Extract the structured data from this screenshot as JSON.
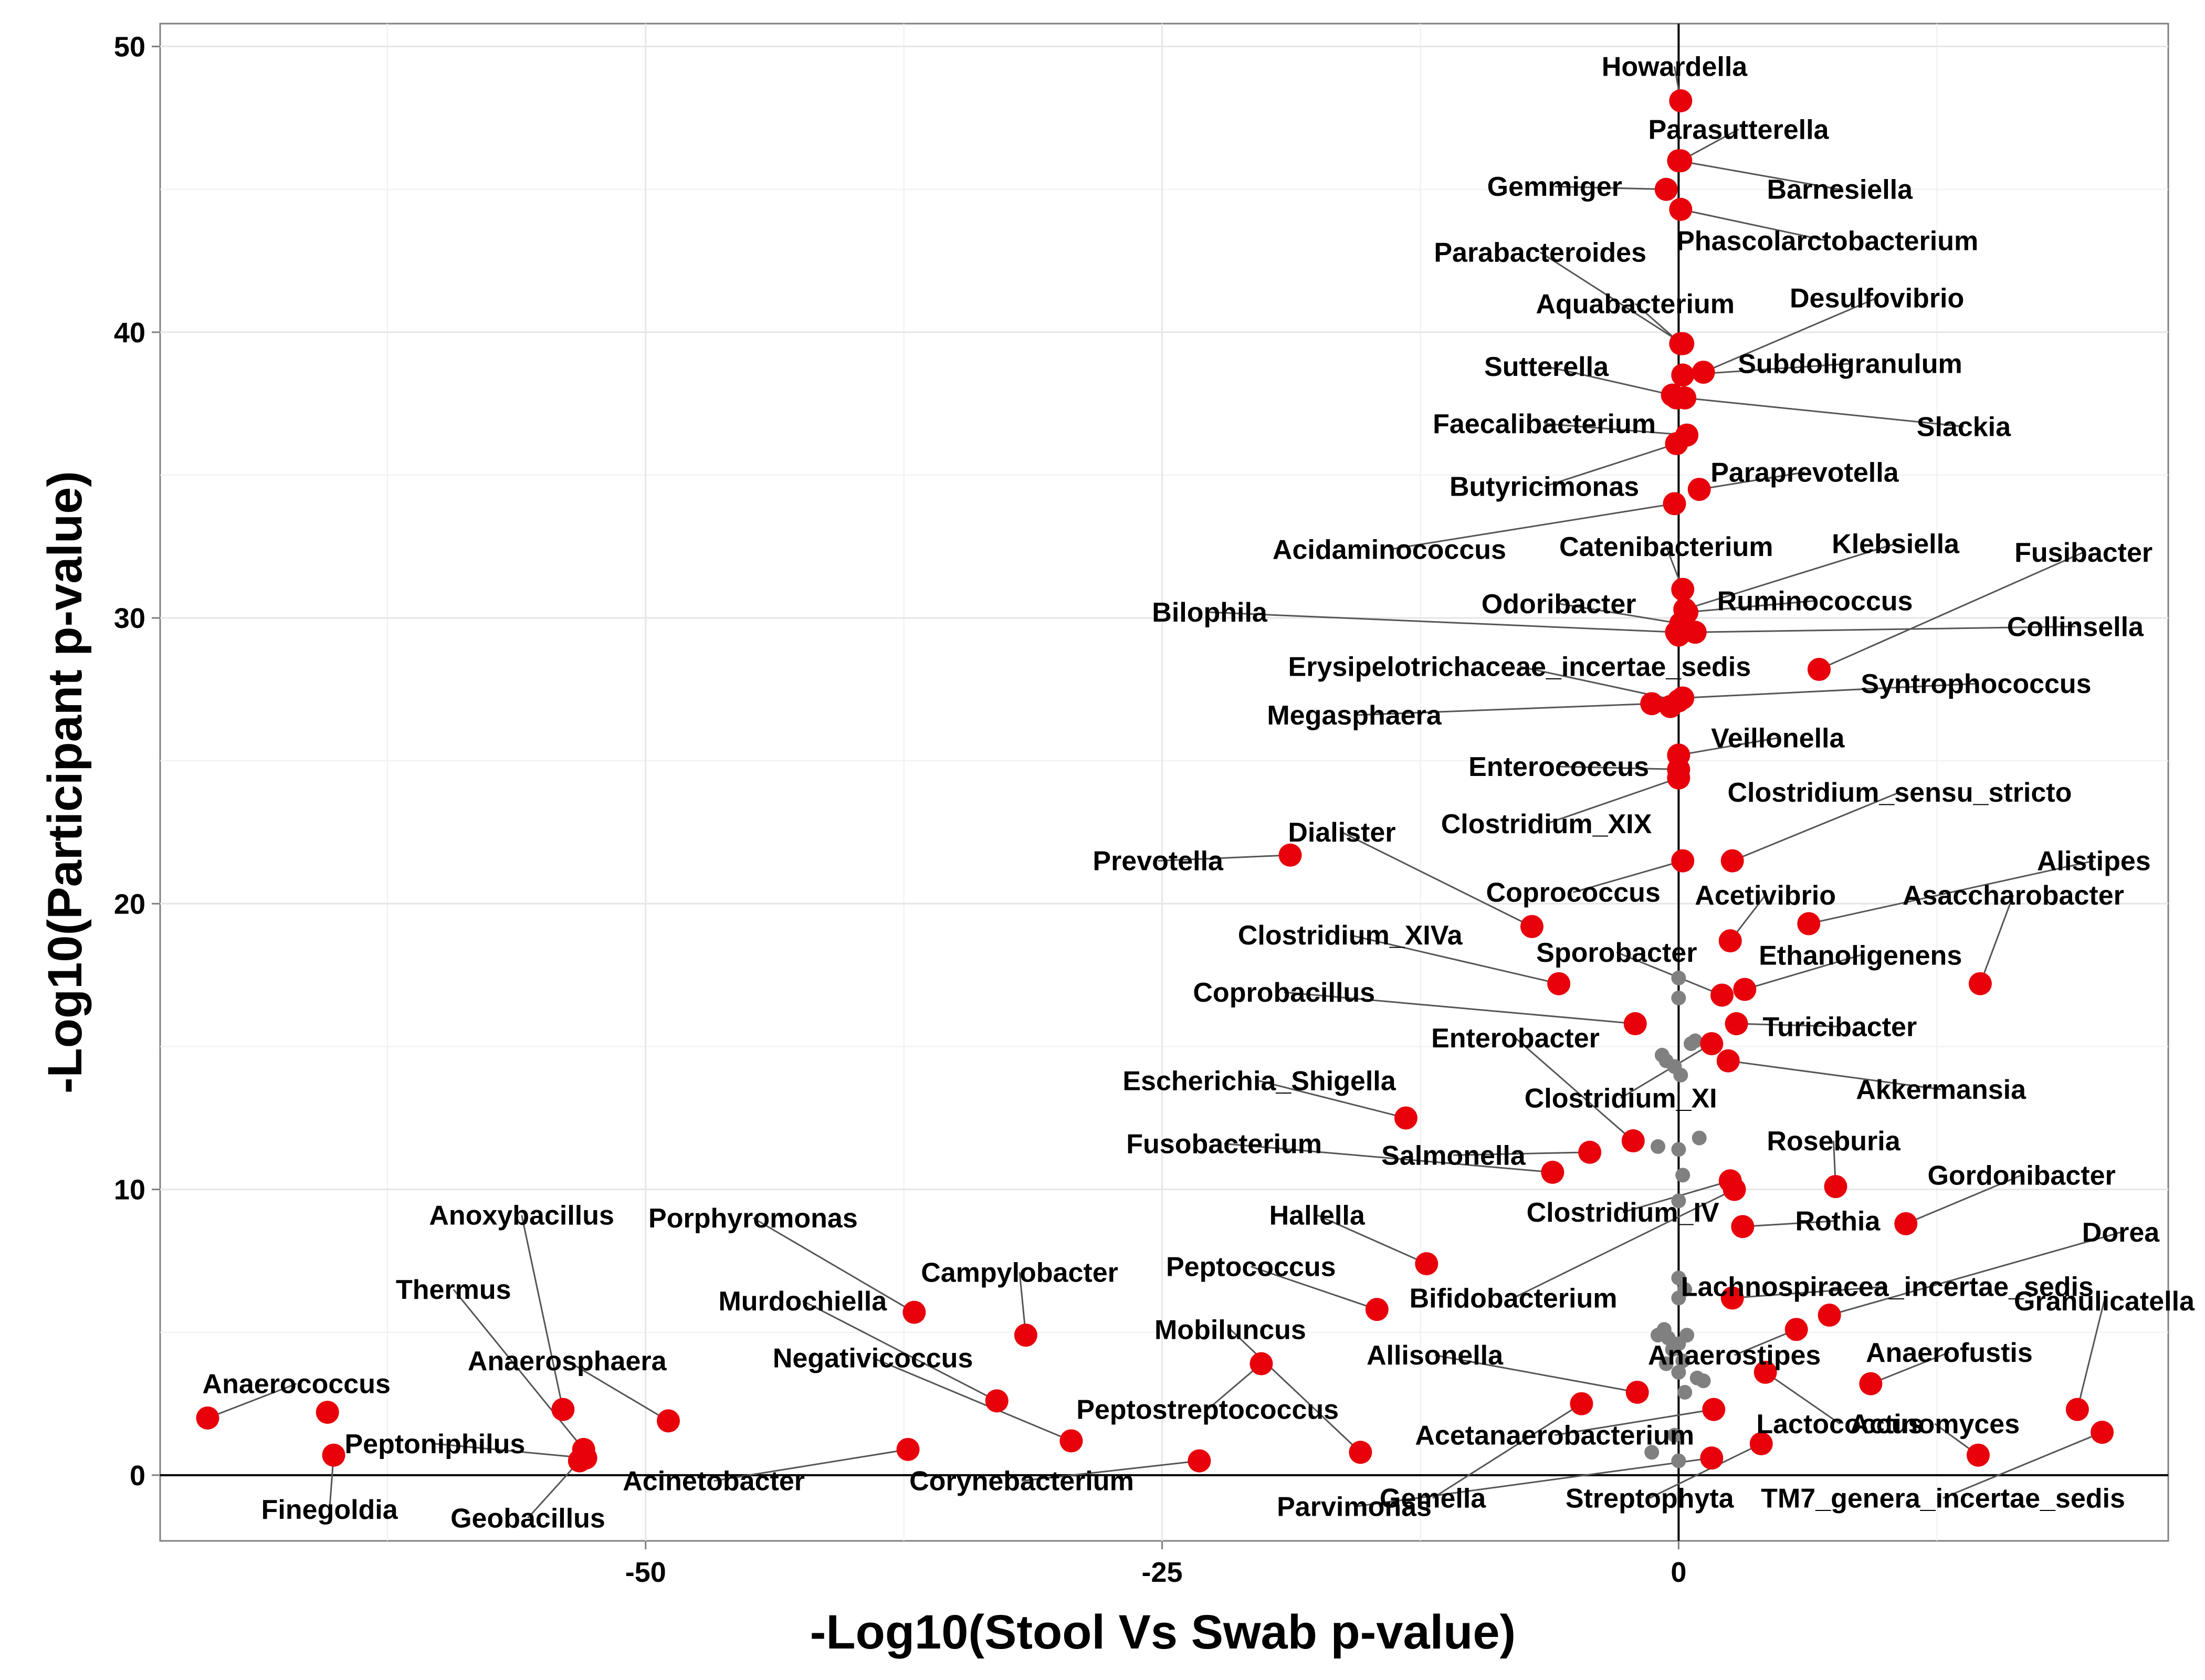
{
  "chart_data": {
    "type": "scatter",
    "title": "",
    "xlabel": "-Log10(Stool Vs Swab p-value)",
    "ylabel": "-Log10(Participant p-value)",
    "xlim": [
      -73.5,
      23.7
    ],
    "ylim": [
      -2.3,
      50.8
    ],
    "x_ticks": [
      -50,
      -25,
      0
    ],
    "x_tick_labels": [
      "-50",
      "-25",
      "0"
    ],
    "y_ticks": [
      0,
      10,
      20,
      30,
      40,
      50
    ],
    "y_tick_labels": [
      "0",
      "10",
      "20",
      "30",
      "40",
      "50"
    ],
    "grid": true,
    "reference_lines": {
      "x": 0,
      "y": 0
    },
    "highlight_color": "#e8000b",
    "background_point_color": "#808080",
    "background_points": [
      {
        "x": 0.0,
        "y": 17.4
      },
      {
        "x": 0.0,
        "y": 16.7
      },
      {
        "x": 0.8,
        "y": 15.2
      },
      {
        "x": 0.6,
        "y": 15.1
      },
      {
        "x": -0.8,
        "y": 14.7
      },
      {
        "x": -0.6,
        "y": 14.5
      },
      {
        "x": -0.2,
        "y": 14.3
      },
      {
        "x": 0.1,
        "y": 14.0
      },
      {
        "x": -1.0,
        "y": 11.5
      },
      {
        "x": 0.0,
        "y": 11.4
      },
      {
        "x": 1.0,
        "y": 11.8
      },
      {
        "x": 0.2,
        "y": 10.5
      },
      {
        "x": 0.0,
        "y": 9.6
      },
      {
        "x": 0.0,
        "y": 6.9
      },
      {
        "x": 0.3,
        "y": 6.5
      },
      {
        "x": 0.0,
        "y": 6.2
      },
      {
        "x": -0.7,
        "y": 5.1
      },
      {
        "x": -1.0,
        "y": 4.9
      },
      {
        "x": -0.5,
        "y": 4.8
      },
      {
        "x": 0.0,
        "y": 4.6
      },
      {
        "x": 0.4,
        "y": 4.9
      },
      {
        "x": -0.3,
        "y": 4.4
      },
      {
        "x": 0.2,
        "y": 4.0
      },
      {
        "x": -0.6,
        "y": 3.9
      },
      {
        "x": 0.0,
        "y": 3.6
      },
      {
        "x": 0.9,
        "y": 3.4
      },
      {
        "x": 1.2,
        "y": 3.3
      },
      {
        "x": 0.3,
        "y": 2.9
      },
      {
        "x": -0.2,
        "y": 1.4
      },
      {
        "x": -1.3,
        "y": 0.8
      },
      {
        "x": 0.0,
        "y": 0.5
      }
    ],
    "points": [
      {
        "name": "Howardella",
        "x": 0.1,
        "y": 48.1,
        "lx": -0.2,
        "ly": 49.3
      },
      {
        "name": "Parasutterella",
        "x": 0.1,
        "y": 46.0,
        "lx": 2.9,
        "ly": 47.1
      },
      {
        "name": "Barnesiella",
        "x": 0.0,
        "y": 46.0,
        "lx": 7.8,
        "ly": 45.0
      },
      {
        "name": "Gemmiger",
        "x": -0.6,
        "y": 45.0,
        "lx": -6.0,
        "ly": 45.1
      },
      {
        "name": "Phascolarctobacterium",
        "x": 0.1,
        "y": 44.3,
        "lx": 7.2,
        "ly": 43.2
      },
      {
        "name": "Parabacteroides",
        "x": 0.2,
        "y": 39.6,
        "lx": -6.7,
        "ly": 42.8
      },
      {
        "name": "Desulfovibrio",
        "x": 1.2,
        "y": 38.6,
        "lx": 9.6,
        "ly": 41.2
      },
      {
        "name": "Aquabacterium",
        "x": 0.1,
        "y": 39.6,
        "lx": -2.1,
        "ly": 41.0
      },
      {
        "name": "Subdoligranulum",
        "x": 0.2,
        "y": 38.5,
        "lx": 8.3,
        "ly": 38.9
      },
      {
        "name": "Sutterella",
        "x": -0.3,
        "y": 37.8,
        "lx": -6.4,
        "ly": 38.8
      },
      {
        "name": "Slackia",
        "x": 0.3,
        "y": 37.7,
        "lx": 13.8,
        "ly": 36.7
      },
      {
        "name": "Faecalibacterium",
        "x": 0.4,
        "y": 36.4,
        "lx": -6.5,
        "ly": 36.8
      },
      {
        "name": "Butyricimonas",
        "x": -0.1,
        "y": 36.1,
        "lx": -6.5,
        "ly": 34.6
      },
      {
        "name": "Paraprevotella",
        "x": 1.0,
        "y": 34.5,
        "lx": 6.1,
        "ly": 35.1
      },
      {
        "name": "Acidaminococcus",
        "x": -0.2,
        "y": 34.0,
        "lx": -14.0,
        "ly": 32.4
      },
      {
        "name": "Catenibacterium",
        "x": 0.2,
        "y": 31.0,
        "lx": -0.6,
        "ly": 32.5
      },
      {
        "name": "Klebsiella",
        "x": 0.3,
        "y": 30.3,
        "lx": 10.5,
        "ly": 32.6
      },
      {
        "name": "Fusibacter",
        "x": 6.8,
        "y": 28.2,
        "lx": 19.6,
        "ly": 32.3
      },
      {
        "name": "Odoribacter",
        "x": 0.1,
        "y": 29.8,
        "lx": -5.8,
        "ly": 30.5
      },
      {
        "name": "Ruminococcus",
        "x": 0.4,
        "y": 30.2,
        "lx": 6.6,
        "ly": 30.6
      },
      {
        "name": "Bilophila",
        "x": -0.1,
        "y": 29.5,
        "lx": -22.7,
        "ly": 30.2
      },
      {
        "name": "Collinsella",
        "x": 0.8,
        "y": 29.5,
        "lx": 19.2,
        "ly": 29.7
      },
      {
        "name": "Erysipelotrichaceae_incertae_sedis",
        "x": 0.0,
        "y": 27.1,
        "lx": -7.7,
        "ly": 28.3
      },
      {
        "name": "Syntrophococcus",
        "x": 0.2,
        "y": 27.2,
        "lx": 14.4,
        "ly": 27.7
      },
      {
        "name": "Megasphaera",
        "x": -1.3,
        "y": 27.0,
        "lx": -15.7,
        "ly": 26.6
      },
      {
        "name": "Veillonella",
        "x": 0.0,
        "y": 25.2,
        "lx": 4.8,
        "ly": 25.8
      },
      {
        "name": "Enterococcus",
        "x": 0.0,
        "y": 24.7,
        "lx": -5.8,
        "ly": 24.8
      },
      {
        "name": "Clostridium_sensu_stricto",
        "x": 2.6,
        "y": 21.5,
        "lx": 10.7,
        "ly": 23.9
      },
      {
        "name": "Clostridium_XIX",
        "x": 0.0,
        "y": 24.4,
        "lx": -6.4,
        "ly": 22.8
      },
      {
        "name": "Dialister",
        "x": -7.1,
        "y": 19.2,
        "lx": -16.3,
        "ly": 22.5
      },
      {
        "name": "Prevotella",
        "x": -18.8,
        "y": 21.7,
        "lx": -25.2,
        "ly": 21.5
      },
      {
        "name": "Alistipes",
        "x": 6.3,
        "y": 19.3,
        "lx": 20.1,
        "ly": 21.5
      },
      {
        "name": "Coprococcus",
        "x": 0.2,
        "y": 21.5,
        "lx": -5.1,
        "ly": 20.4
      },
      {
        "name": "Acetivibrio",
        "x": 2.5,
        "y": 18.7,
        "lx": 4.2,
        "ly": 20.3
      },
      {
        "name": "Asaccharobacter",
        "x": 14.6,
        "y": 17.2,
        "lx": 16.2,
        "ly": 20.3
      },
      {
        "name": "Clostridium_XIVa",
        "x": -5.8,
        "y": 17.2,
        "lx": -15.9,
        "ly": 18.9
      },
      {
        "name": "Sporobacter",
        "x": 2.1,
        "y": 16.8,
        "lx": -3.0,
        "ly": 18.3
      },
      {
        "name": "Ethanoligenens",
        "x": 3.2,
        "y": 17.0,
        "lx": 8.8,
        "ly": 18.2
      },
      {
        "name": "Coprobacillus",
        "x": -2.1,
        "y": 15.8,
        "lx": -19.1,
        "ly": 16.9
      },
      {
        "name": "Turicibacter",
        "x": 2.8,
        "y": 15.8,
        "lx": 7.8,
        "ly": 15.7
      },
      {
        "name": "Enterobacter",
        "x": -2.2,
        "y": 11.7,
        "lx": -7.9,
        "ly": 15.3
      },
      {
        "name": "Akkermansia",
        "x": 2.4,
        "y": 14.5,
        "lx": 12.7,
        "ly": 13.5
      },
      {
        "name": "Escherichia_Shigella",
        "x": -13.2,
        "y": 12.5,
        "lx": -20.3,
        "ly": 13.8
      },
      {
        "name": "Clostridium_XI",
        "x": 1.6,
        "y": 15.1,
        "lx": -2.8,
        "ly": 13.2
      },
      {
        "name": "Roseburia",
        "x": 7.6,
        "y": 10.1,
        "lx": 7.5,
        "ly": 11.7
      },
      {
        "name": "Fusobacterium",
        "x": -6.1,
        "y": 10.6,
        "lx": -22.0,
        "ly": 11.6
      },
      {
        "name": "Salmonella",
        "x": -4.3,
        "y": 11.3,
        "lx": -10.9,
        "ly": 11.2
      },
      {
        "name": "Gordonibacter",
        "x": 11.0,
        "y": 8.8,
        "lx": 16.6,
        "ly": 10.5
      },
      {
        "name": "Clostridium_IV",
        "x": 2.5,
        "y": 10.3,
        "lx": -2.7,
        "ly": 9.2
      },
      {
        "name": "Hallella",
        "x": -12.2,
        "y": 7.4,
        "lx": -17.5,
        "ly": 9.1
      },
      {
        "name": "Rothia",
        "x": 3.1,
        "y": 8.7,
        "lx": 7.7,
        "ly": 8.9
      },
      {
        "name": "Porphyromonas",
        "x": -37.0,
        "y": 5.7,
        "lx": -44.8,
        "ly": 9.0
      },
      {
        "name": "Anoxybacillus",
        "x": -54.0,
        "y": 2.3,
        "lx": -56.0,
        "ly": 9.1
      },
      {
        "name": "Dorea",
        "x": 7.3,
        "y": 5.6,
        "lx": 21.4,
        "ly": 8.5
      },
      {
        "name": "Campylobacter",
        "x": -31.6,
        "y": 4.9,
        "lx": -31.9,
        "ly": 7.1
      },
      {
        "name": "Peptococcus",
        "x": -14.6,
        "y": 5.8,
        "lx": -20.7,
        "ly": 7.3
      },
      {
        "name": "Lachnospiracea_incertae_sedis",
        "x": 2.6,
        "y": 6.2,
        "lx": 10.1,
        "ly": 6.6
      },
      {
        "name": "Bifidobacterium",
        "x": 2.7,
        "y": 10.0,
        "lx": -8.0,
        "ly": 6.2
      },
      {
        "name": "Thermus",
        "x": -53.0,
        "y": 0.9,
        "lx": -59.3,
        "ly": 6.5
      },
      {
        "name": "Granulicatella",
        "x": 19.3,
        "y": 2.3,
        "lx": 20.6,
        "ly": 6.1
      },
      {
        "name": "Murdochiella",
        "x": -33.0,
        "y": 2.6,
        "lx": -42.4,
        "ly": 6.1
      },
      {
        "name": "Mobiluncus",
        "x": -15.4,
        "y": 0.8,
        "lx": -21.7,
        "ly": 5.1
      },
      {
        "name": "Allisonella",
        "x": -2.0,
        "y": 2.9,
        "lx": -11.8,
        "ly": 4.2
      },
      {
        "name": "Anaerostipes",
        "x": 5.7,
        "y": 5.1,
        "lx": 2.7,
        "ly": 4.2
      },
      {
        "name": "Anaerofustis",
        "x": 9.3,
        "y": 3.2,
        "lx": 13.1,
        "ly": 4.3
      },
      {
        "name": "Negativicoccus",
        "x": -29.4,
        "y": 1.2,
        "lx": -39.0,
        "ly": 4.1
      },
      {
        "name": "Anaerosphaera",
        "x": -48.9,
        "y": 1.9,
        "lx": -53.8,
        "ly": 4.0
      },
      {
        "name": "Anaerococcus",
        "x": -71.2,
        "y": 2.0,
        "lx": -66.9,
        "ly": 3.2
      },
      {
        "name": "Peptostreptococcus",
        "x": -20.2,
        "y": 3.9,
        "lx": -22.8,
        "ly": 2.3
      },
      {
        "name": "Actinomyces",
        "x": 14.5,
        "y": 0.7,
        "lx": 12.4,
        "ly": 1.8
      },
      {
        "name": "Lactococcus",
        "x": 4.2,
        "y": 3.6,
        "lx": 7.8,
        "ly": 1.8
      },
      {
        "name": "Peptoniphilus",
        "x": -52.9,
        "y": 0.6,
        "lx": -60.2,
        "ly": 1.1
      },
      {
        "name": "Acetanaerobacterium",
        "x": 1.7,
        "y": 2.3,
        "lx": -6.0,
        "ly": 1.4
      },
      {
        "name": "Acinetobacter",
        "x": -37.3,
        "y": 0.9,
        "lx": -46.7,
        "ly": -0.2
      },
      {
        "name": "Corynebacterium",
        "x": -23.2,
        "y": 0.5,
        "lx": -31.8,
        "ly": -0.2
      },
      {
        "name": "Gemella",
        "x": -4.7,
        "y": 2.5,
        "lx": -11.9,
        "ly": -0.8
      },
      {
        "name": "Streptophyta",
        "x": 4.0,
        "y": 1.1,
        "lx": -1.4,
        "ly": -0.8
      },
      {
        "name": "TM7_genera_incertae_sedis",
        "x": 20.5,
        "y": 1.5,
        "lx": 12.8,
        "ly": -0.8
      },
      {
        "name": "Finegoldia",
        "x": -65.1,
        "y": 0.7,
        "lx": -65.3,
        "ly": -1.2
      },
      {
        "name": "Parvimonas",
        "x": 1.6,
        "y": 0.6,
        "lx": -15.7,
        "ly": -1.1
      },
      {
        "name": "Geobacillus",
        "x": -53.2,
        "y": 0.5,
        "lx": -55.7,
        "ly": -1.5
      },
      {
        "name": "(unlabeled)",
        "x": -65.4,
        "y": 2.2,
        "lx": -65.4,
        "ly": 2.2
      },
      {
        "name": "(unlabeled)",
        "x": -0.1,
        "y": 37.7,
        "lx": -0.1,
        "ly": 37.7
      },
      {
        "name": "(unlabeled)",
        "x": 0.0,
        "y": 29.4,
        "lx": 0.0,
        "ly": 29.4
      },
      {
        "name": "(unlabeled)",
        "x": -0.4,
        "y": 26.9,
        "lx": -0.4,
        "ly": 26.9
      }
    ]
  }
}
